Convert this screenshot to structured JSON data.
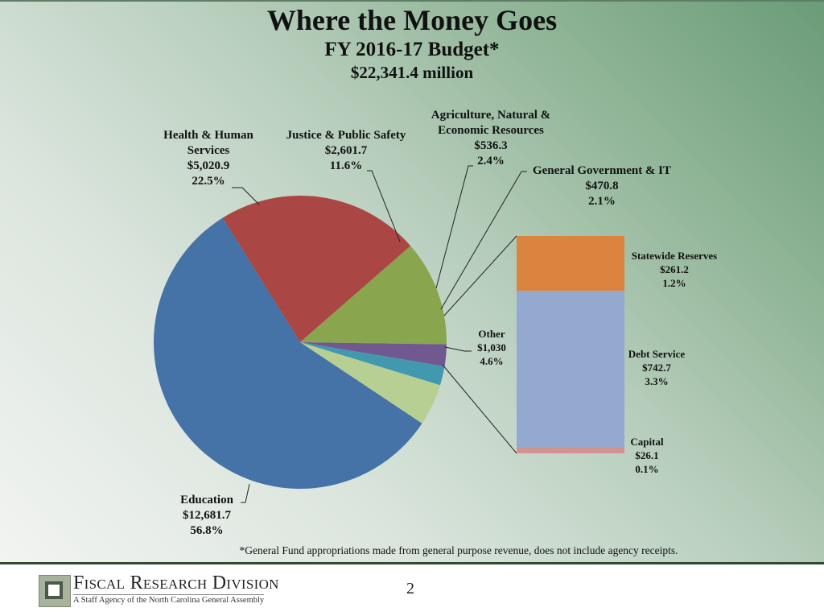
{
  "title": "Where the Money Goes",
  "subtitle": "FY 2016-17 Budget*",
  "total": "$22,341.4 million",
  "footnote": "*General Fund appropriations made from general purpose revenue, does not include agency receipts.",
  "footer": {
    "org_name": "Fiscal Research Division",
    "org_sub": "A Staff Agency of the North Carolina General Assembly",
    "page_number": "2"
  },
  "labels": {
    "hhs": {
      "name1": "Health & Human",
      "name2": "Services",
      "value": "$5,020.9",
      "pct": "22.5%"
    },
    "jps": {
      "name1": "Justice & Public Safety",
      "value": "$2,601.7",
      "pct": "11.6%"
    },
    "ag": {
      "name1": "Agriculture, Natural &",
      "name2": "Economic Resources",
      "value": "$536.3",
      "pct": "2.4%"
    },
    "gg": {
      "name1": "General Government & IT",
      "value": "$470.8",
      "pct": "2.1%"
    },
    "other": {
      "name1": "Other",
      "value": "$1,030",
      "pct": "4.6%"
    },
    "edu": {
      "name1": "Education",
      "value": "$12,681.7",
      "pct": "56.8%"
    },
    "reserves": {
      "name1": "Statewide Reserves",
      "value": "$261.2",
      "pct": "1.2%"
    },
    "debt": {
      "name1": "Debt Service",
      "value": "$742.7",
      "pct": "3.3%"
    },
    "capital": {
      "name1": "Capital",
      "value": "$26.1",
      "pct": "0.1%"
    }
  },
  "chart_data": [
    {
      "type": "pie",
      "title": "Where the Money Goes — FY 2016-17 Budget* ($22,341.4 million)",
      "units": "$ millions",
      "categories": [
        "Education",
        "Health & Human Services",
        "Justice & Public Safety",
        "Agriculture, Natural & Economic Resources",
        "General Government & IT",
        "Other"
      ],
      "values": [
        12681.7,
        5020.9,
        2601.7,
        536.3,
        470.8,
        1030
      ],
      "percents": [
        56.8,
        22.5,
        11.6,
        2.4,
        2.1,
        4.6
      ],
      "colors": [
        "#4572a7",
        "#aa4643",
        "#89a54e",
        "#71588f",
        "#4198af",
        "#b8cf94"
      ]
    },
    {
      "type": "bar",
      "stacked": true,
      "title": "Other (breakdown)",
      "units": "$ millions",
      "categories": [
        "Statewide Reserves",
        "Debt Service",
        "Capital"
      ],
      "values": [
        261.2,
        742.7,
        26.1
      ],
      "percents": [
        1.2,
        3.3,
        0.1
      ],
      "colors": [
        "#db843d",
        "#93a9cf",
        "#d09392"
      ]
    }
  ]
}
